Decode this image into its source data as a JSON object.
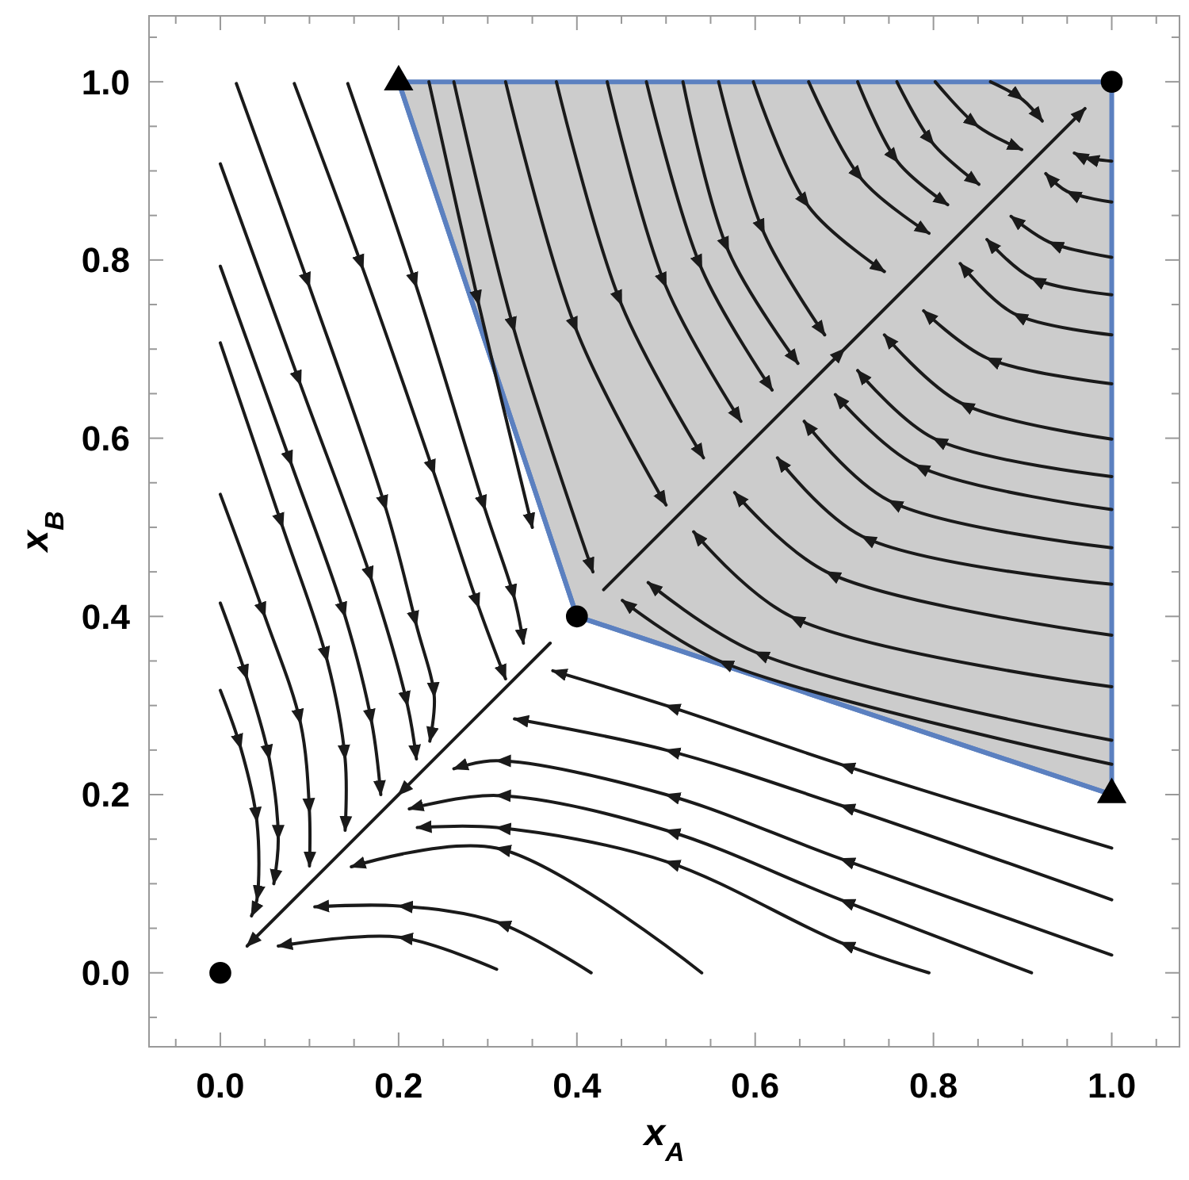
{
  "chart_data": {
    "type": "line",
    "xlabel": "x$_{A}$",
    "ylabel": "x$_{B}$",
    "xlim": [
      -0.08,
      1.076
    ],
    "ylim": [
      -0.083,
      1.074
    ],
    "xticks": [
      {
        "value": -0.05,
        "label": null
      },
      {
        "value": 0,
        "label": "0.0"
      },
      {
        "value": 0.05,
        "label": null
      },
      {
        "value": 0.1,
        "label": null
      },
      {
        "value": 0.15,
        "label": null
      },
      {
        "value": 0.2,
        "label": "0.2"
      },
      {
        "value": 0.25,
        "label": null
      },
      {
        "value": 0.3,
        "label": null
      },
      {
        "value": 0.35,
        "label": null
      },
      {
        "value": 0.4,
        "label": "0.4"
      },
      {
        "value": 0.45,
        "label": null
      },
      {
        "value": 0.5,
        "label": null
      },
      {
        "value": 0.55,
        "label": null
      },
      {
        "value": 0.6,
        "label": "0.6"
      },
      {
        "value": 0.65,
        "label": null
      },
      {
        "value": 0.7,
        "label": null
      },
      {
        "value": 0.75,
        "label": null
      },
      {
        "value": 0.8,
        "label": "0.8"
      },
      {
        "value": 0.85,
        "label": null
      },
      {
        "value": 0.9,
        "label": null
      },
      {
        "value": 0.95,
        "label": null
      },
      {
        "value": 1,
        "label": "1.0"
      },
      {
        "value": 1.05,
        "label": null
      }
    ],
    "yticks": [
      {
        "value": -0.05,
        "label": null
      },
      {
        "value": 0,
        "label": "0.0"
      },
      {
        "value": 0.05,
        "label": null
      },
      {
        "value": 0.1,
        "label": null
      },
      {
        "value": 0.15,
        "label": null
      },
      {
        "value": 0.2,
        "label": "0.2"
      },
      {
        "value": 0.25,
        "label": null
      },
      {
        "value": 0.3,
        "label": null
      },
      {
        "value": 0.35,
        "label": null
      },
      {
        "value": 0.4,
        "label": "0.4"
      },
      {
        "value": 0.45,
        "label": null
      },
      {
        "value": 0.5,
        "label": null
      },
      {
        "value": 0.55,
        "label": null
      },
      {
        "value": 0.6,
        "label": "0.6"
      },
      {
        "value": 0.65,
        "label": null
      },
      {
        "value": 0.7,
        "label": null
      },
      {
        "value": 0.75,
        "label": null
      },
      {
        "value": 0.8,
        "label": "0.8"
      },
      {
        "value": 0.85,
        "label": null
      },
      {
        "value": 0.9,
        "label": null
      },
      {
        "value": 0.95,
        "label": null
      },
      {
        "value": 1,
        "label": "1.0"
      },
      {
        "value": 1.05,
        "label": null
      }
    ],
    "series": [
      {
        "type": "line",
        "color": "#5b80c0",
        "x": [
          0.2,
          0.4,
          1
        ],
        "values": [
          1,
          0.4,
          0.2
        ],
        "lower": [
          1,
          0.4,
          0.2
        ],
        "upper": [
          1,
          1,
          1
        ]
      },
      {
        "color": "#1a1a1a",
        "x": [
          0.018,
          0.1,
          0.186,
          0.22,
          0.24,
          0.235
        ],
        "values": [
          0.998,
          0.77,
          0.52,
          0.39,
          0.31,
          0.26
        ]
      },
      {
        "color": "#1a1a1a",
        "x": [
          0.083,
          0.16,
          0.24,
          0.29,
          0.32
        ],
        "values": [
          0.998,
          0.79,
          0.56,
          0.41,
          0.33
        ]
      },
      {
        "color": "#1a1a1a",
        "x": [
          0.143,
          0.22,
          0.297,
          0.33,
          0.34
        ],
        "values": [
          0.998,
          0.77,
          0.52,
          0.42,
          0.37
        ]
      },
      {
        "type": "line",
        "color": "#1a1a1a",
        "x": [
          0,
          0.09,
          0.17,
          0.21,
          0.22
        ],
        "values": [
          0.908,
          0.66,
          0.44,
          0.3,
          0.24
        ]
      },
      {
        "type": "line",
        "color": "#1a1a1a",
        "x": [
          0,
          0.08,
          0.14,
          0.17,
          0.18
        ],
        "values": [
          0.793,
          0.57,
          0.4,
          0.28,
          0.2
        ]
      },
      {
        "type": "line",
        "color": "#1a1a1a",
        "x": [
          0,
          0.07,
          0.12,
          0.14,
          0.14
        ],
        "values": [
          0.707,
          0.5,
          0.35,
          0.24,
          0.16
        ]
      },
      {
        "type": "line",
        "color": "#1a1a1a",
        "x": [
          0,
          0.05,
          0.09,
          0.1,
          0.1
        ],
        "values": [
          0.537,
          0.4,
          0.28,
          0.18,
          0.12
        ]
      },
      {
        "type": "line",
        "color": "#1a1a1a",
        "x": [
          0,
          0.03,
          0.055,
          0.065,
          0.06
        ],
        "values": [
          0.415,
          0.33,
          0.24,
          0.15,
          0.1
        ]
      },
      {
        "type": "line",
        "color": "#1a1a1a",
        "x": [
          0,
          0.023,
          0.041,
          0.041,
          0.035
        ],
        "values": [
          0.317,
          0.252,
          0.17,
          0.082,
          0.064
        ]
      },
      {
        "type": "line",
        "color": "#1a1a1a",
        "x": [
          1,
          0.696,
          0.5,
          0.373
        ],
        "values": [
          0.14,
          0.234,
          0.3,
          0.339
        ]
      },
      {
        "type": "line",
        "color": "#1a1a1a",
        "x": [
          1,
          0.696,
          0.5,
          0.33
        ],
        "values": [
          0.082,
          0.188,
          0.25,
          0.285
        ]
      },
      {
        "type": "line",
        "color": "#1a1a1a",
        "x": [
          1,
          0.696,
          0.5,
          0.31,
          0.262
        ],
        "values": [
          0.02,
          0.128,
          0.2,
          0.238,
          0.229
        ]
      },
      {
        "type": "line",
        "color": "#1a1a1a",
        "x": [
          0.91,
          0.696,
          0.5,
          0.31,
          0.212
        ],
        "values": [
          0,
          0.082,
          0.16,
          0.199,
          0.184
        ]
      },
      {
        "type": "line",
        "color": "#1a1a1a",
        "x": [
          0.795,
          0.696,
          0.5,
          0.31,
          0.221
        ],
        "values": [
          0,
          0.034,
          0.125,
          0.163,
          0.163
        ]
      },
      {
        "type": "line",
        "color": "#1a1a1a",
        "x": [
          0.54,
          0.31,
          0.147
        ],
        "values": [
          0,
          0.14,
          0.119
        ]
      },
      {
        "type": "line",
        "color": "#1a1a1a",
        "x": [
          0.416,
          0.31,
          0.2,
          0.106
        ],
        "values": [
          0,
          0.057,
          0.075,
          0.074
        ]
      },
      {
        "type": "line",
        "color": "#1a1a1a",
        "x": [
          0.31,
          0.2,
          0.065
        ],
        "values": [
          0.004,
          0.04,
          0.03
        ]
      },
      {
        "type": "line",
        "color": "#1a1a1a",
        "x": [
          0.37,
          0.2,
          0.03
        ],
        "values": [
          0.37,
          0.2,
          0.03
        ]
      },
      {
        "type": "line",
        "color": "#1a1a1a",
        "x": [
          0.43,
          0.7,
          0.97
        ],
        "values": [
          0.43,
          0.7,
          0.97
        ]
      },
      {
        "type": "line",
        "color": "#1a1a1a",
        "x": [
          0.234,
          0.29,
          0.35
        ],
        "values": [
          1,
          0.75,
          0.5
        ]
      },
      {
        "type": "line",
        "color": "#1a1a1a",
        "x": [
          0.262,
          0.33,
          0.418
        ],
        "values": [
          1,
          0.72,
          0.45
        ]
      },
      {
        "type": "line",
        "color": "#1a1a1a",
        "x": [
          0.32,
          0.4,
          0.5
        ],
        "values": [
          1,
          0.72,
          0.525
        ]
      },
      {
        "type": "line",
        "color": "#1a1a1a",
        "x": [
          0.377,
          0.45,
          0.542
        ],
        "values": [
          1,
          0.75,
          0.578
        ]
      },
      {
        "type": "line",
        "color": "#1a1a1a",
        "x": [
          0.434,
          0.5,
          0.584
        ],
        "values": [
          1,
          0.77,
          0.619
        ]
      },
      {
        "type": "line",
        "color": "#1a1a1a",
        "x": [
          0.478,
          0.54,
          0.619
        ],
        "values": [
          1,
          0.79,
          0.654
        ]
      },
      {
        "type": "line",
        "color": "#1a1a1a",
        "x": [
          0.519,
          0.57,
          0.648
        ],
        "values": [
          1,
          0.81,
          0.684
        ]
      },
      {
        "type": "line",
        "color": "#1a1a1a",
        "x": [
          0.559,
          0.61,
          0.678
        ],
        "values": [
          1,
          0.83,
          0.716
        ]
      },
      {
        "type": "line",
        "color": "#1a1a1a",
        "x": [
          0.598,
          0.66,
          0.745
        ],
        "values": [
          1,
          0.86,
          0.787
        ]
      },
      {
        "type": "line",
        "color": "#1a1a1a",
        "x": [
          0.66,
          0.72,
          0.795
        ],
        "values": [
          1,
          0.89,
          0.83
        ]
      },
      {
        "type": "line",
        "color": "#1a1a1a",
        "x": [
          0.715,
          0.76,
          0.816
        ],
        "values": [
          1,
          0.91,
          0.862
        ]
      },
      {
        "type": "line",
        "color": "#1a1a1a",
        "x": [
          0.759,
          0.8,
          0.851
        ],
        "values": [
          1,
          0.93,
          0.885
        ]
      },
      {
        "type": "line",
        "color": "#1a1a1a",
        "x": [
          0.802,
          0.85,
          0.899
        ],
        "values": [
          1,
          0.95,
          0.924
        ]
      },
      {
        "type": "line",
        "color": "#1a1a1a",
        "x": [
          0.864,
          0.9,
          0.922
        ],
        "values": [
          1,
          0.98,
          0.956
        ]
      },
      {
        "type": "line",
        "color": "#1a1a1a",
        "x": [
          1,
          0.97,
          0.958
        ],
        "values": [
          0.911,
          0.915,
          0.92
        ]
      },
      {
        "type": "line",
        "color": "#1a1a1a",
        "x": [
          1,
          0.95,
          0.926
        ],
        "values": [
          0.865,
          0.877,
          0.897
        ]
      },
      {
        "type": "line",
        "color": "#1a1a1a",
        "x": [
          1,
          0.93,
          0.887
        ],
        "values": [
          0.803,
          0.82,
          0.849
        ]
      },
      {
        "type": "line",
        "color": "#1a1a1a",
        "x": [
          1,
          0.91,
          0.86
        ],
        "values": [
          0.761,
          0.78,
          0.823
        ]
      },
      {
        "type": "line",
        "color": "#1a1a1a",
        "x": [
          1,
          0.89,
          0.83
        ],
        "values": [
          0.716,
          0.74,
          0.796
        ]
      },
      {
        "type": "line",
        "color": "#1a1a1a",
        "x": [
          1,
          0.86,
          0.789
        ],
        "values": [
          0.661,
          0.69,
          0.743
        ]
      },
      {
        "type": "line",
        "color": "#1a1a1a",
        "x": [
          1,
          0.83,
          0.745
        ],
        "values": [
          0.599,
          0.64,
          0.716
        ]
      },
      {
        "type": "line",
        "color": "#1a1a1a",
        "x": [
          1,
          0.8,
          0.715
        ],
        "values": [
          0.557,
          0.6,
          0.676
        ]
      },
      {
        "type": "line",
        "color": "#1a1a1a",
        "x": [
          1,
          0.78,
          0.69
        ],
        "values": [
          0.52,
          0.57,
          0.649
        ]
      },
      {
        "type": "line",
        "color": "#1a1a1a",
        "x": [
          1,
          0.75,
          0.655
        ],
        "values": [
          0.477,
          0.53,
          0.619
        ]
      },
      {
        "type": "line",
        "color": "#1a1a1a",
        "x": [
          1,
          0.72,
          0.625
        ],
        "values": [
          0.436,
          0.49,
          0.578
        ]
      },
      {
        "type": "line",
        "color": "#1a1a1a",
        "x": [
          1,
          0.68,
          0.577
        ],
        "values": [
          0.379,
          0.45,
          0.539
        ]
      },
      {
        "type": "line",
        "color": "#1a1a1a",
        "x": [
          1,
          0.64,
          0.531
        ],
        "values": [
          0.321,
          0.4,
          0.495
        ]
      },
      {
        "type": "line",
        "color": "#1a1a1a",
        "x": [
          1,
          0.6,
          0.48
        ],
        "values": [
          0.261,
          0.36,
          0.438
        ]
      },
      {
        "type": "line",
        "color": "#1a1a1a",
        "x": [
          1,
          0.56,
          0.451
        ],
        "values": [
          0.234,
          0.35,
          0.418
        ]
      },
      {
        "type": "scatter",
        "color": "#000000",
        "marker": "circle",
        "x": [
          0,
          0.4,
          1
        ],
        "values": [
          0,
          0.4,
          1
        ]
      },
      {
        "type": "scatter",
        "color": "#000000",
        "marker": "triangle",
        "x": [
          0.2,
          1
        ],
        "values": [
          1,
          0.2
        ]
      }
    ]
  }
}
